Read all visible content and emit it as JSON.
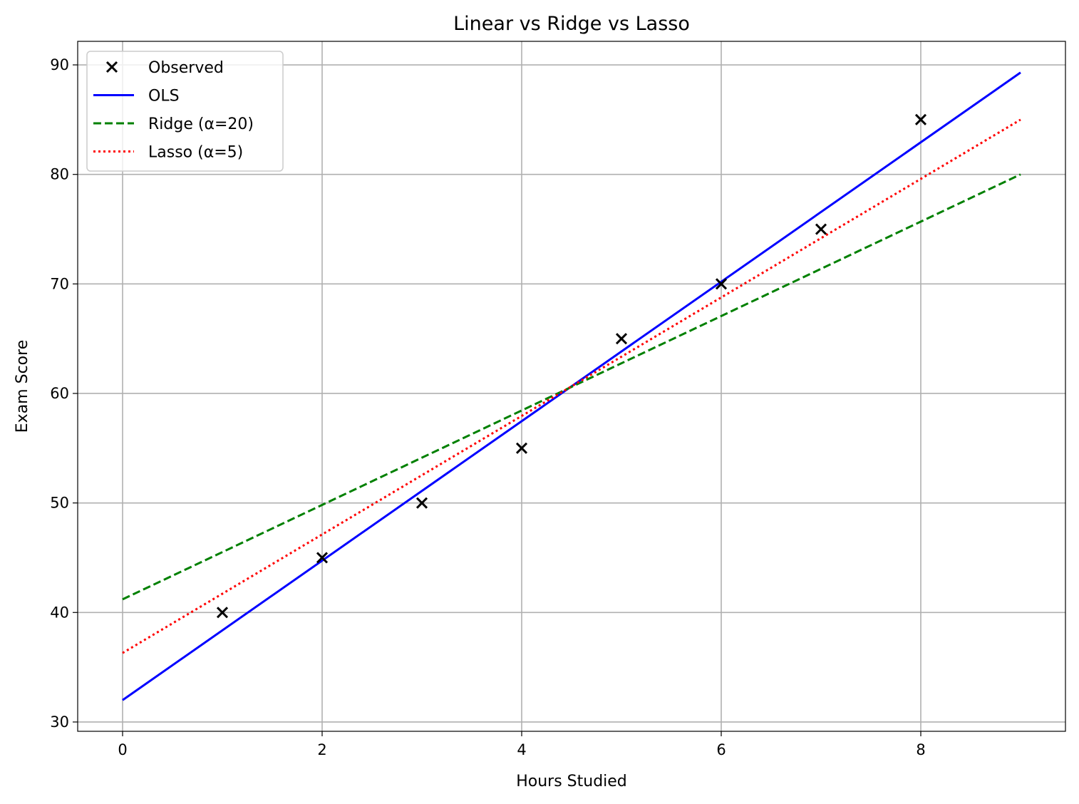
{
  "chart_data": {
    "type": "scatter",
    "title": "Linear vs Ridge vs Lasso",
    "xlabel": "Hours Studied",
    "ylabel": "Exam Score",
    "xlim": [
      -0.45,
      9.45
    ],
    "ylim": [
      29.15,
      92.15
    ],
    "xticks": [
      0,
      2,
      4,
      6,
      8
    ],
    "yticks": [
      30,
      40,
      50,
      60,
      70,
      80,
      90
    ],
    "grid": true,
    "legend_position": "upper-left",
    "series": [
      {
        "name": "Observed",
        "kind": "scatter",
        "marker": "x",
        "color": "#000000",
        "x": [
          1,
          2,
          3,
          4,
          5,
          6,
          7,
          8
        ],
        "y": [
          40,
          45,
          50,
          55,
          65,
          70,
          75,
          85
        ]
      },
      {
        "name": "OLS",
        "kind": "line",
        "style": "solid",
        "color": "#0000ff",
        "x": [
          0,
          9
        ],
        "y": [
          32.0,
          89.3
        ]
      },
      {
        "name": "Ridge (α=20)",
        "kind": "line",
        "style": "dashed",
        "color": "#008000",
        "x": [
          0,
          9
        ],
        "y": [
          41.2,
          80.0
        ]
      },
      {
        "name": "Lasso (α=5)",
        "kind": "line",
        "style": "dotted",
        "color": "#ff0000",
        "x": [
          0,
          9
        ],
        "y": [
          36.3,
          85.0
        ]
      }
    ]
  }
}
